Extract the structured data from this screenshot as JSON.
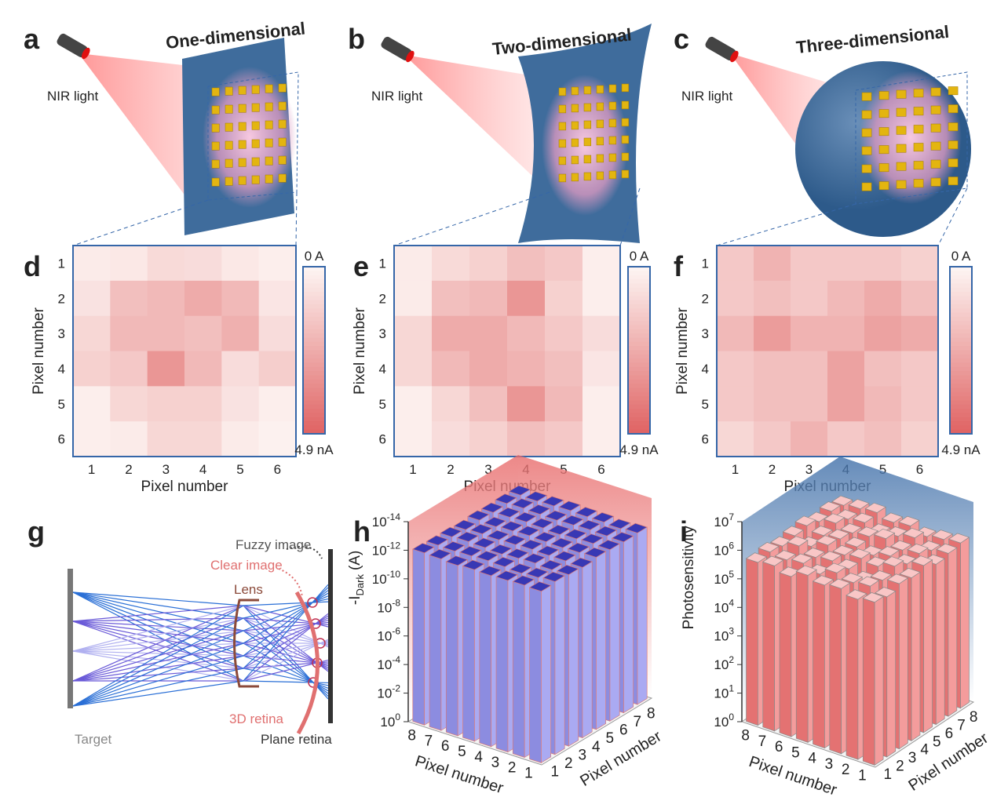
{
  "panel_labels": [
    "a",
    "b",
    "c",
    "d",
    "e",
    "f",
    "g",
    "h",
    "i"
  ],
  "devices": [
    {
      "title": "One-dimensional",
      "light": "NIR light"
    },
    {
      "title": "Two-dimensional",
      "light": "NIR light"
    },
    {
      "title": "Three-dimensional",
      "light": "NIR light"
    }
  ],
  "diagram": {
    "fuzzy": "Fuzzy image",
    "clear": "Clear image",
    "lens": "Lens",
    "retina_3d": "3D retina",
    "target": "Target",
    "plane_retina": "Plane retina"
  },
  "chart_data": [
    {
      "type": "heatmap",
      "values": [
        [
          0.3,
          0.4,
          0.9,
          0.8,
          0.4,
          0.2
        ],
        [
          0.6,
          1.8,
          2.0,
          2.5,
          2.0,
          0.5
        ],
        [
          1.0,
          2.0,
          2.0,
          1.8,
          2.3,
          0.8
        ],
        [
          1.2,
          1.5,
          3.2,
          2.0,
          0.8,
          1.3
        ],
        [
          0.2,
          1.0,
          1.2,
          1.2,
          0.6,
          0.2
        ],
        [
          0.2,
          0.3,
          1.0,
          1.0,
          0.3,
          0.1
        ]
      ],
      "xticks": [
        1,
        2,
        3,
        4,
        5,
        6
      ],
      "yticks": [
        1,
        2,
        3,
        4,
        5,
        6
      ],
      "x_label": "Pixel number",
      "y_label": "Pixel number",
      "clim": [
        0,
        4.9
      ],
      "clim_labels": [
        "0 A",
        "4.9 nA"
      ],
      "colors": [
        "#fdf4f2",
        "#e06464"
      ]
    },
    {
      "type": "heatmap",
      "values": [
        [
          0.3,
          0.9,
          1.2,
          1.8,
          1.5,
          0.2
        ],
        [
          0.3,
          1.8,
          2.0,
          3.2,
          1.2,
          0.2
        ],
        [
          1.0,
          2.5,
          2.5,
          2.0,
          1.5,
          0.8
        ],
        [
          1.0,
          2.0,
          2.5,
          2.2,
          1.8,
          0.5
        ],
        [
          0.2,
          1.0,
          1.8,
          3.2,
          2.0,
          0.2
        ],
        [
          0.2,
          0.8,
          1.2,
          1.8,
          1.5,
          0.2
        ]
      ],
      "xticks": [
        1,
        2,
        3,
        4,
        5,
        6
      ],
      "yticks": [
        1,
        2,
        3,
        4,
        5,
        6
      ],
      "x_label": "Pixel number",
      "y_label": "Pixel number",
      "clim": [
        0,
        4.9
      ],
      "clim_labels": [
        "0 A",
        "4.9 nA"
      ],
      "colors": [
        "#fdf4f2",
        "#e06464"
      ]
    },
    {
      "type": "heatmap",
      "values": [
        [
          1.5,
          2.2,
          1.5,
          1.5,
          1.5,
          1.2
        ],
        [
          1.5,
          1.8,
          1.5,
          2.0,
          2.5,
          1.8
        ],
        [
          2.0,
          3.0,
          2.2,
          2.2,
          2.8,
          2.5
        ],
        [
          1.5,
          1.8,
          1.8,
          2.8,
          1.8,
          1.5
        ],
        [
          1.5,
          1.8,
          1.8,
          2.8,
          2.0,
          1.5
        ],
        [
          1.0,
          1.5,
          2.2,
          1.5,
          1.8,
          1.2
        ]
      ],
      "xticks": [
        1,
        2,
        3,
        4,
        5,
        6
      ],
      "yticks": [
        1,
        2,
        3,
        4,
        5,
        6
      ],
      "x_label": "Pixel number",
      "y_label": "Pixel number",
      "clim": [
        0,
        4.9
      ],
      "clim_labels": [
        "0 A",
        "4.9 nA"
      ],
      "colors": [
        "#fdf4f2",
        "#e06464"
      ]
    },
    {
      "type": "bar3d",
      "log": true,
      "values": [
        [
          1e-12,
          8e-13,
          1e-12,
          1.2e-12,
          9e-13,
          1e-12,
          1.1e-12,
          1e-12
        ],
        [
          9e-13,
          1e-12,
          1.1e-12,
          1e-12,
          1e-12,
          9e-13,
          1e-12,
          1.2e-12
        ],
        [
          1e-12,
          1.2e-12,
          9e-13,
          1e-12,
          1.1e-12,
          1e-12,
          9e-13,
          1e-12
        ],
        [
          1.1e-12,
          1e-12,
          1e-12,
          9e-13,
          1e-12,
          1.2e-12,
          1e-12,
          1e-12
        ],
        [
          1e-12,
          9e-13,
          1.2e-12,
          1e-12,
          9e-13,
          1e-12,
          1.1e-12,
          9e-13
        ],
        [
          1.2e-12,
          1e-12,
          1e-12,
          1.1e-12,
          1e-12,
          9e-13,
          1e-12,
          1e-12
        ],
        [
          1e-12,
          1.1e-12,
          9e-13,
          1e-12,
          1.2e-12,
          1e-12,
          9e-13,
          1.1e-12
        ],
        [
          9e-13,
          1e-12,
          1e-12,
          1.2e-12,
          1e-12,
          1.1e-12,
          1e-12,
          1e-12
        ]
      ],
      "x_categories": [
        1,
        2,
        3,
        4,
        5,
        6,
        7,
        8
      ],
      "y_categories": [
        1,
        2,
        3,
        4,
        5,
        6,
        7,
        8
      ],
      "x_label": "Pixel number",
      "y_label": "Pixel number",
      "z_label": {
        "text": "-I",
        "sub": "Dark",
        "unit": "(A)"
      },
      "zlim": [
        1,
        1e-14
      ],
      "zticks": [
        {
          "value": 1,
          "label": "10",
          "sup": "0"
        },
        {
          "value": 0.01,
          "label": "10",
          "sup": "-2"
        },
        {
          "value": 0.0001,
          "label": "10",
          "sup": "-4"
        },
        {
          "value": 1e-06,
          "label": "10",
          "sup": "-6"
        },
        {
          "value": 1e-08,
          "label": "10",
          "sup": "-8"
        },
        {
          "value": 1e-10,
          "label": "10",
          "sup": "-10"
        },
        {
          "value": 1e-12,
          "label": "10",
          "sup": "-12"
        },
        {
          "value": 1e-14,
          "label": "10",
          "sup": "-14"
        }
      ],
      "colors": {
        "side": "#8c8ce0",
        "front": "#aaaaf2",
        "top": "#3838b4",
        "edge": "#d87a7a",
        "wall": "#e86a6a"
      }
    },
    {
      "type": "bar3d",
      "log": true,
      "values": [
        [
          500000.0,
          400000.0,
          600000.0,
          500000.0,
          700000.0,
          400000.0,
          500000.0,
          600000.0
        ],
        [
          400000.0,
          600000.0,
          500000.0,
          800000.0,
          500000.0,
          600000.0,
          400000.0,
          500000.0
        ],
        [
          600000.0,
          500000.0,
          300000.0,
          500000.0,
          600000.0,
          500000.0,
          700000.0,
          400000.0
        ],
        [
          500000.0,
          700000.0,
          500000.0,
          600000.0,
          400000.0,
          800000.0,
          500000.0,
          600000.0
        ],
        [
          700000.0,
          400000.0,
          600000.0,
          500000.0,
          500000.0,
          600000.0,
          400000.0,
          500000.0
        ],
        [
          400000.0,
          600000.0,
          500000.0,
          700000.0,
          600000.0,
          500000.0,
          600000.0,
          700000.0
        ],
        [
          600000.0,
          500000.0,
          800000.0,
          400000.0,
          500000.0,
          700000.0,
          500000.0,
          600000.0
        ],
        [
          500000.0,
          600000.0,
          500000.0,
          600000.0,
          700000.0,
          500000.0,
          600000.0,
          500000.0
        ]
      ],
      "x_categories": [
        1,
        2,
        3,
        4,
        5,
        6,
        7,
        8
      ],
      "y_categories": [
        1,
        2,
        3,
        4,
        5,
        6,
        7,
        8
      ],
      "x_label": "Pixel number",
      "y_label": "Pixel number",
      "z_label": {
        "text": "Photosensitivity"
      },
      "zlim": [
        1,
        10000000.0
      ],
      "zticks": [
        {
          "value": 1,
          "label": "10",
          "sup": "0"
        },
        {
          "value": 10,
          "label": "10",
          "sup": "1"
        },
        {
          "value": 100,
          "label": "10",
          "sup": "2"
        },
        {
          "value": 1000,
          "label": "10",
          "sup": "3"
        },
        {
          "value": 10000.0,
          "label": "10",
          "sup": "4"
        },
        {
          "value": 100000.0,
          "label": "10",
          "sup": "5"
        },
        {
          "value": 1000000.0,
          "label": "10",
          "sup": "6"
        },
        {
          "value": 10000000.0,
          "label": "10",
          "sup": "7"
        }
      ],
      "colors": {
        "side": "#e47272",
        "front": "#f49c9c",
        "top": "#f9c6c6",
        "edge": "#8a8a8a",
        "wall": "#3e6ea8"
      }
    }
  ]
}
